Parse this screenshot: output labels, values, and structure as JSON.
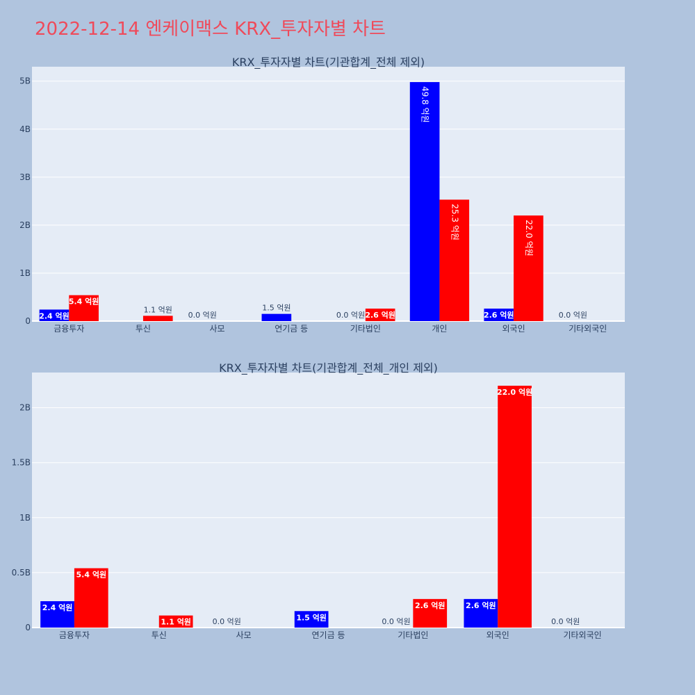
{
  "page": {
    "title": "2022-12-14 엔케이맥스 KRX_투자자별 차트",
    "background": "#b0c4de",
    "plot_background": "#e5ecf6",
    "title_color": "#ef4a5a",
    "buy_color": "#0000ff",
    "sell_color": "#ff0000"
  },
  "chart_data": [
    {
      "type": "bar",
      "title": "KRX_투자자별 차트(기관합계_전체 제외)",
      "categories": [
        "금융투자",
        "투신",
        "사모",
        "연기금 등",
        "기타법인",
        "개인",
        "외국인",
        "기타외국인"
      ],
      "ylim": [
        0,
        5300000000
      ],
      "yticks": [
        0,
        1000000000,
        2000000000,
        3000000000,
        4000000000,
        5000000000
      ],
      "ytick_labels": [
        "0",
        "1B",
        "2B",
        "3B",
        "4B",
        "5B"
      ],
      "grid": true,
      "series": [
        {
          "values": [
            240000000,
            0,
            0,
            150000000,
            0,
            4980000000,
            260000000,
            0
          ],
          "labels": [
            "2.4 억원",
            "",
            "0.0 억원",
            "1.5 억원",
            "0.0 억원",
            "49.8 억원",
            "2.6 억원",
            "0.0 억원"
          ],
          "color": "#0000ff"
        },
        {
          "values": [
            540000000,
            110000000,
            0,
            0,
            260000000,
            2530000000,
            2200000000,
            0
          ],
          "labels": [
            "5.4 억원",
            "1.1 억원",
            "",
            "",
            "2.6 억원",
            "25.3 억원",
            "22.0 억원",
            ""
          ],
          "color": "#ff0000"
        }
      ]
    },
    {
      "type": "bar",
      "title": "KRX_투자자별 차트(기관합계_전체_개인 제외)",
      "categories": [
        "금융투자",
        "투신",
        "사모",
        "연기금 등",
        "기타법인",
        "외국인",
        "기타외국인"
      ],
      "ylim": [
        0,
        2320000000
      ],
      "yticks": [
        0,
        500000000,
        1000000000,
        1500000000,
        2000000000
      ],
      "ytick_labels": [
        "0",
        "0.5B",
        "1B",
        "1.5B",
        "2B"
      ],
      "grid": true,
      "series": [
        {
          "values": [
            240000000,
            0,
            0,
            150000000,
            0,
            260000000,
            0
          ],
          "labels": [
            "2.4 억원",
            "",
            "0.0 억원",
            "1.5 억원",
            "0.0 억원",
            "2.6 억원",
            "0.0 억원"
          ],
          "color": "#0000ff"
        },
        {
          "values": [
            540000000,
            110000000,
            0,
            0,
            260000000,
            2200000000,
            0
          ],
          "labels": [
            "5.4 억원",
            "1.1 억원",
            "",
            "",
            "2.6 억원",
            "22.0 억원",
            ""
          ],
          "color": "#ff0000"
        }
      ]
    }
  ]
}
